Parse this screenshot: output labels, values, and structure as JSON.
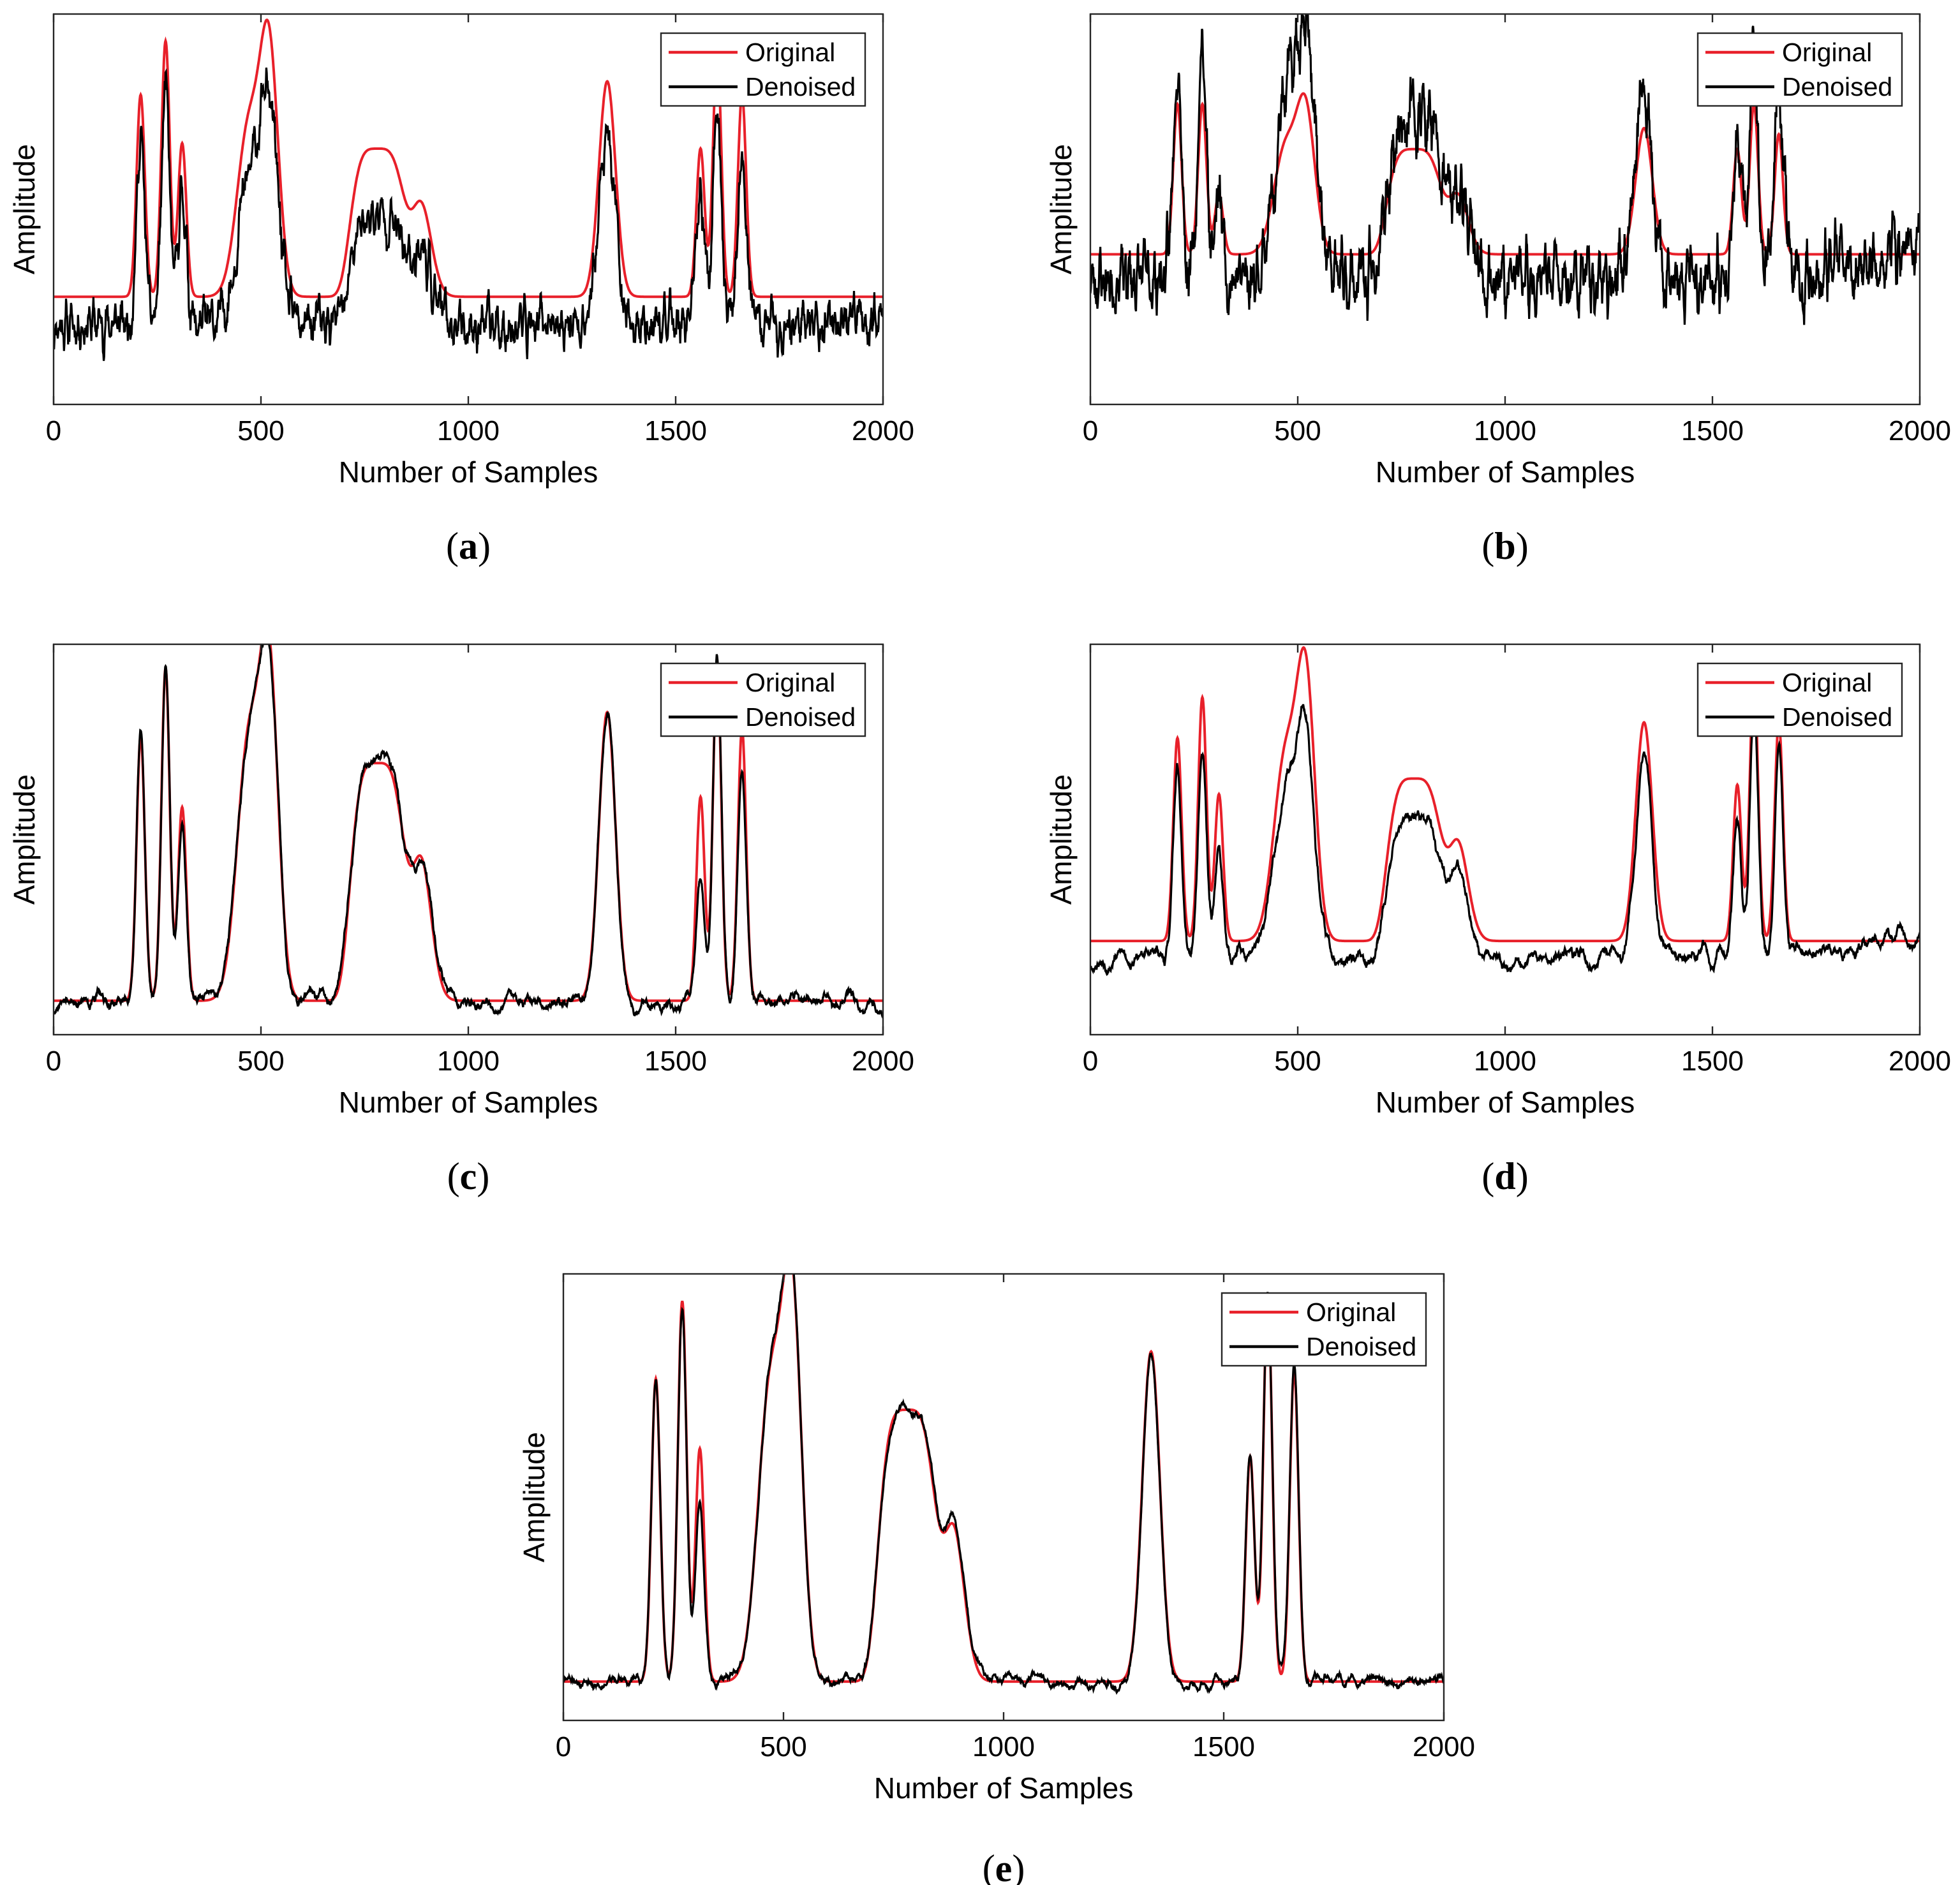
{
  "colors": {
    "original": "#e8202a",
    "denoised": "#000000",
    "axis": "#262626"
  },
  "chart_data": [
    {
      "type": "line",
      "panel_label": "a",
      "xlabel": "Number of Samples",
      "ylabel": "Amplitude",
      "xlim": [
        0,
        2000
      ],
      "ylim": [
        -0.4,
        1.05
      ],
      "xticks": [
        "0",
        "500",
        "1000",
        "1500",
        "2000"
      ],
      "legend": {
        "position": "top-right",
        "entries": [
          "Original",
          "Denoised"
        ]
      },
      "original_peaks": [
        [
          210,
          0.75,
          10
        ],
        [
          270,
          0.95,
          10
        ],
        [
          310,
          0.57,
          10
        ],
        [
          470,
          0.62,
          28
        ],
        [
          520,
          0.88,
          22
        ],
        [
          780,
          0.55,
          60
        ],
        [
          885,
          0.35,
          25
        ],
        [
          1335,
          0.8,
          20
        ],
        [
          1560,
          0.55,
          10
        ],
        [
          1600,
          0.92,
          10
        ],
        [
          1660,
          0.75,
          10
        ]
      ],
      "denoised_params": {
        "scale": 0.9,
        "offset": -0.1,
        "noise": 0.1,
        "seed": 11,
        "peak_scale": [
          1.0,
          1.0,
          0.95,
          0.9,
          0.95,
          0.8,
          0.9,
          0.95,
          0.95,
          1.0,
          0.95
        ]
      }
    },
    {
      "type": "line",
      "panel_label": "b",
      "xlabel": "Number of Samples",
      "ylabel": "Amplitude",
      "xlim": [
        0,
        2000
      ],
      "ylim": [
        -0.5,
        0.8
      ],
      "xticks": [
        "0",
        "500",
        "1000",
        "1500",
        "2000"
      ],
      "legend": {
        "position": "top-right",
        "entries": [
          "Original",
          "Denoised"
        ]
      },
      "original_peaks": [
        [
          210,
          0.5,
          10
        ],
        [
          270,
          0.5,
          10
        ],
        [
          310,
          0.2,
          10
        ],
        [
          470,
          0.35,
          28
        ],
        [
          520,
          0.45,
          22
        ],
        [
          780,
          0.35,
          60
        ],
        [
          885,
          0.2,
          25
        ],
        [
          1335,
          0.42,
          20
        ],
        [
          1560,
          0.35,
          10
        ],
        [
          1600,
          0.5,
          10
        ],
        [
          1660,
          0.4,
          10
        ]
      ],
      "denoised_params": {
        "scale": 1.55,
        "offset": -0.08,
        "noise": 0.13,
        "seed": 23,
        "peak_scale": [
          1.0,
          1.0,
          0.8,
          1.0,
          1.1,
          1.0,
          0.9,
          1.0,
          0.8,
          1.0,
          1.1
        ],
        "drift": 0.1
      }
    },
    {
      "type": "line",
      "panel_label": "c",
      "xlabel": "Number of Samples",
      "ylabel": "Amplitude",
      "xlim": [
        0,
        2000
      ],
      "ylim": [
        -0.1,
        1.05
      ],
      "xticks": [
        "0",
        "500",
        "1000",
        "1500",
        "2000"
      ],
      "legend": {
        "position": "top-right",
        "entries": [
          "Original",
          "Denoised"
        ]
      },
      "original_peaks": [
        [
          210,
          0.78,
          10
        ],
        [
          270,
          0.98,
          10
        ],
        [
          310,
          0.57,
          10
        ],
        [
          470,
          0.75,
          28
        ],
        [
          520,
          0.93,
          22
        ],
        [
          780,
          0.7,
          60
        ],
        [
          885,
          0.42,
          25
        ],
        [
          1335,
          0.85,
          20
        ],
        [
          1560,
          0.6,
          10
        ],
        [
          1600,
          1.0,
          10
        ],
        [
          1660,
          0.8,
          10
        ]
      ],
      "denoised_params": {
        "scale": 1.0,
        "offset": 0.0,
        "noise": 0.035,
        "seed": 37,
        "smooth": true,
        "peak_scale": [
          1.0,
          1.0,
          0.9,
          1.0,
          1.0,
          1.02,
          1.0,
          1.0,
          0.6,
          1.0,
          0.85
        ]
      }
    },
    {
      "type": "line",
      "panel_label": "d",
      "xlabel": "Number of Samples",
      "ylabel": "Amplitude",
      "xlim": [
        0,
        2000
      ],
      "ylim": [
        -0.3,
        0.95
      ],
      "xticks": [
        "0",
        "500",
        "1000",
        "1500",
        "2000"
      ],
      "legend": {
        "position": "top-right",
        "entries": [
          "Original",
          "Denoised"
        ]
      },
      "original_peaks": [
        [
          210,
          0.65,
          10
        ],
        [
          270,
          0.78,
          10
        ],
        [
          310,
          0.47,
          10
        ],
        [
          470,
          0.58,
          28
        ],
        [
          520,
          0.8,
          22
        ],
        [
          780,
          0.52,
          60
        ],
        [
          885,
          0.32,
          25
        ],
        [
          1335,
          0.7,
          20
        ],
        [
          1560,
          0.5,
          10
        ],
        [
          1600,
          0.85,
          10
        ],
        [
          1660,
          0.7,
          10
        ]
      ],
      "denoised_params": {
        "scale": 0.95,
        "offset": -0.05,
        "noise": 0.045,
        "seed": 53,
        "smooth": true,
        "peak_scale": [
          0.95,
          0.9,
          0.8,
          0.9,
          0.9,
          0.9,
          0.85,
          0.92,
          0.9,
          1.0,
          1.0
        ],
        "tail_rise": 0.07
      }
    },
    {
      "type": "line",
      "panel_label": "e",
      "xlabel": "Number of Samples",
      "ylabel": "Amplitude",
      "xlim": [
        0,
        2000
      ],
      "ylim": [
        -0.1,
        1.05
      ],
      "xticks": [
        "0",
        "500",
        "1000",
        "1500",
        "2000"
      ],
      "legend": {
        "position": "top-right",
        "entries": [
          "Original",
          "Denoised"
        ]
      },
      "original_peaks": [
        [
          210,
          0.78,
          10
        ],
        [
          270,
          0.98,
          10
        ],
        [
          310,
          0.6,
          10
        ],
        [
          470,
          0.75,
          28
        ],
        [
          520,
          0.93,
          22
        ],
        [
          780,
          0.7,
          60
        ],
        [
          885,
          0.4,
          25
        ],
        [
          1335,
          0.85,
          20
        ],
        [
          1560,
          0.58,
          10
        ],
        [
          1600,
          1.0,
          10
        ],
        [
          1660,
          0.8,
          10
        ]
      ],
      "denoised_params": {
        "scale": 1.0,
        "offset": 0.0,
        "noise": 0.025,
        "seed": 71,
        "smooth": true,
        "peak_scale": [
          1.0,
          1.0,
          0.75,
          1.0,
          1.0,
          1.0,
          1.05,
          1.0,
          1.0,
          1.0,
          1.0
        ]
      }
    }
  ]
}
